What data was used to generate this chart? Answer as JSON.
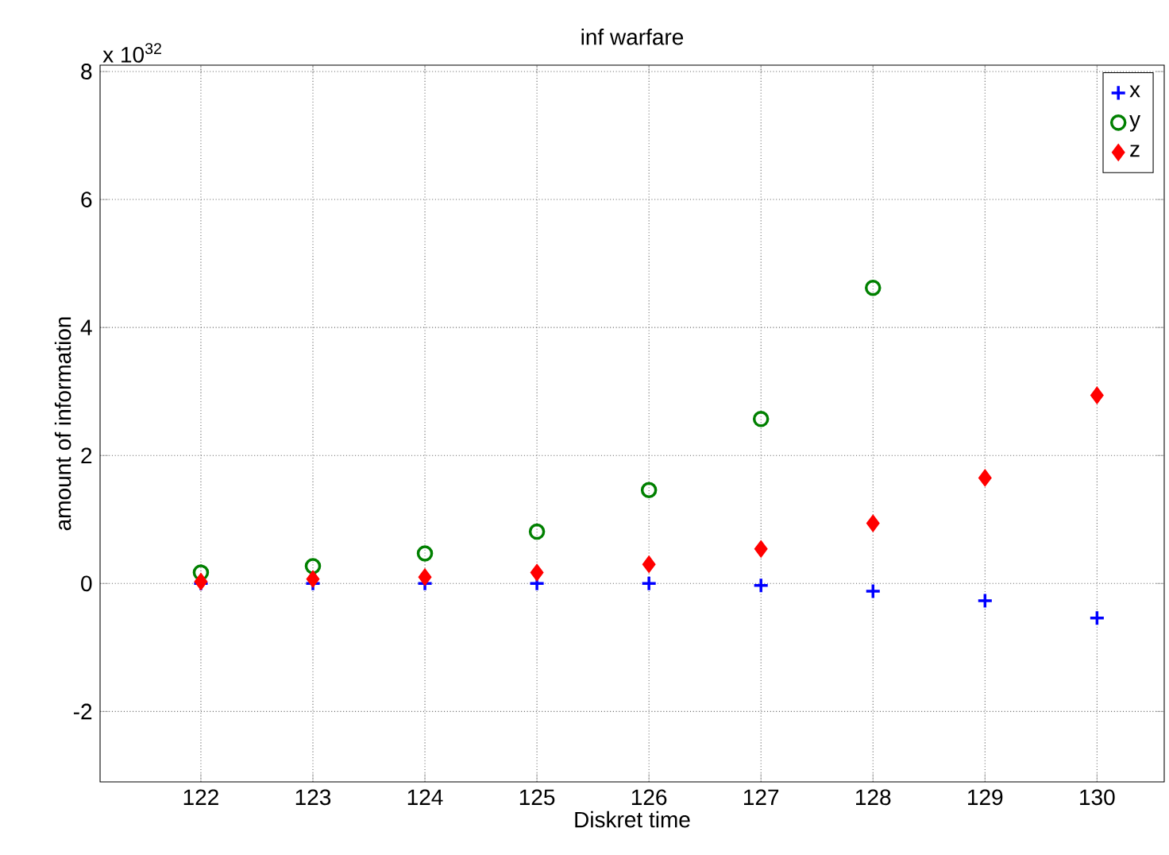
{
  "chart_data": {
    "type": "scatter",
    "title": "inf warfare",
    "xlabel": "Diskret time",
    "ylabel": "amount of information",
    "annotations": [
      "x 10$^{32}$"
    ],
    "x": [
      122,
      123,
      124,
      125,
      126,
      127,
      128,
      129,
      130
    ],
    "series": [
      {
        "name": "x",
        "color": "#0000ff",
        "marker": "cross",
        "values": [
          0,
          0,
          0,
          0,
          0,
          -0.03,
          -0.12,
          -0.27,
          -0.54
        ]
      },
      {
        "name": "y",
        "color": "#008000",
        "marker": "circle",
        "values": [
          0.17,
          0.27,
          0.47,
          0.81,
          1.46,
          2.57,
          4.62,
          null,
          null
        ]
      },
      {
        "name": "z",
        "color": "#ff0000",
        "marker": "diamond",
        "values": [
          0.03,
          0.07,
          0.1,
          0.17,
          0.3,
          0.54,
          0.94,
          1.65,
          2.94
        ]
      }
    ],
    "xlim": [
      121.1,
      130.6
    ],
    "ylim": [
      -3.1,
      8.1
    ],
    "xticks": [
      122,
      123,
      124,
      125,
      126,
      127,
      128,
      129,
      130
    ],
    "yticks": [
      -2,
      0,
      2,
      4,
      6,
      8
    ],
    "grid": true,
    "legend": "top right"
  }
}
